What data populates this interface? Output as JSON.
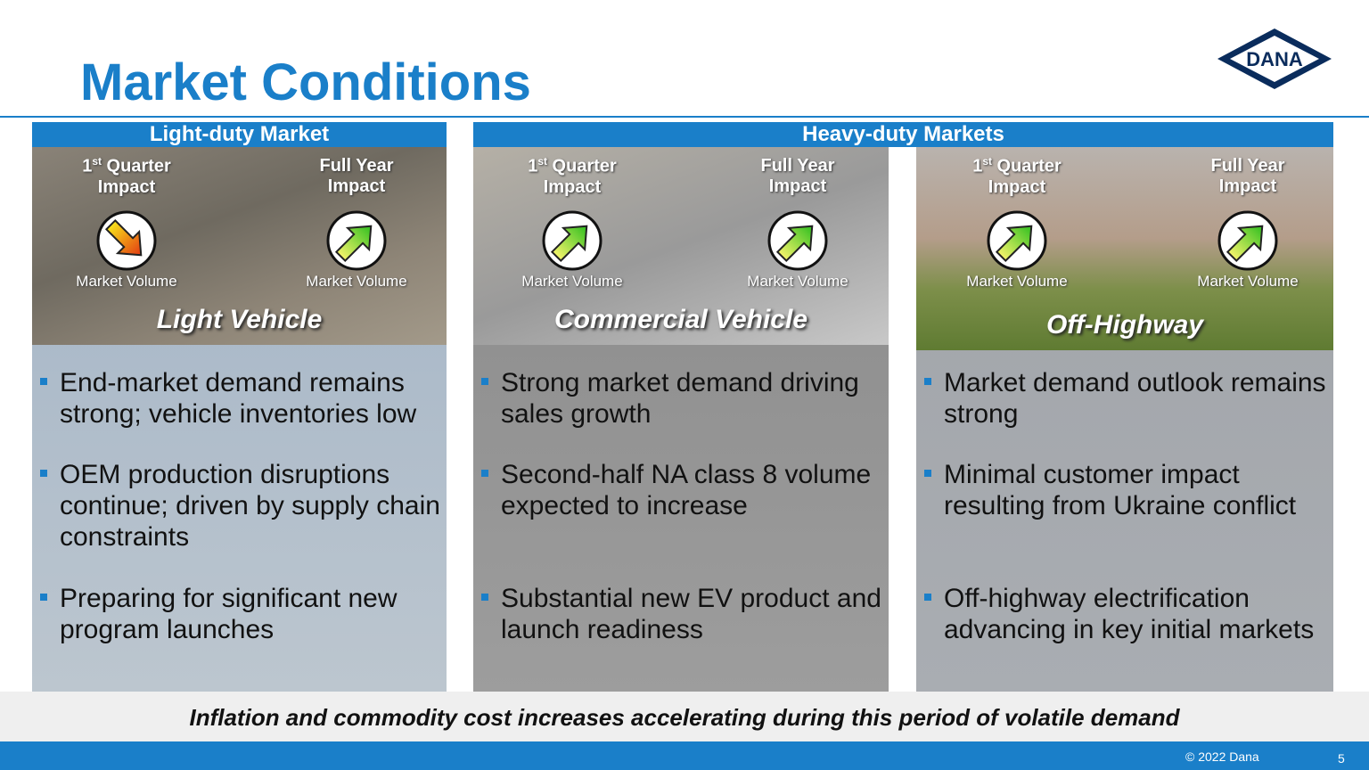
{
  "header": {
    "title": "Market Conditions",
    "logo": "DANA"
  },
  "groups": [
    {
      "label": "Light-duty Market"
    },
    {
      "label": "Heavy-duty Markets"
    }
  ],
  "panels": [
    {
      "q1_ordinal": "1",
      "q1_suffix": "st",
      "q1_text": "Quarter Impact",
      "fy_text": "Full Year Impact",
      "q1_metric": "Market Volume",
      "fy_metric": "Market Volume",
      "segment": "Light Vehicle",
      "bullets": [
        "End-market demand remains strong; vehicle inventories low",
        "OEM production disruptions continue; driven by supply chain constraints",
        "Preparing for significant new program launches"
      ]
    },
    {
      "q1_ordinal": "1",
      "q1_suffix": "st",
      "q1_text": "Quarter Impact",
      "fy_text": "Full Year Impact",
      "q1_metric": "Market Volume",
      "fy_metric": "Market Volume",
      "segment": "Commercial Vehicle",
      "bullets": [
        "Strong market demand driving sales growth",
        "Second-half NA class 8 volume expected to increase",
        "Substantial new EV product and launch readiness"
      ]
    },
    {
      "q1_ordinal": "1",
      "q1_suffix": "st",
      "q1_text": "Quarter Impact",
      "fy_text": "Full Year Impact",
      "q1_metric": "Market Volume",
      "fy_metric": "Market Volume",
      "segment": "Off-Highway",
      "bullets": [
        "Market demand outlook remains strong",
        "Minimal customer impact resulting from Ukraine conflict",
        "Off-highway electrification advancing in key initial markets"
      ]
    }
  ],
  "footer": {
    "banner": "Inflation and commodity cost increases accelerating during this period of volatile demand",
    "copyright": "© 2022 Dana",
    "page": "5"
  }
}
